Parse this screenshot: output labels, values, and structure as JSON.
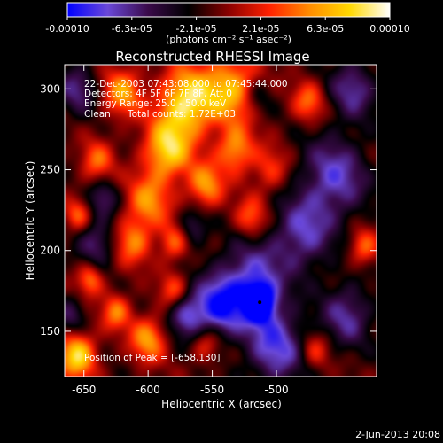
{
  "chart_data": {
    "type": "heatmap",
    "title": "Reconstructed RHESSI Image",
    "xlabel": "Heliocentric X (arcsec)",
    "ylabel": "Heliocentric Y (arcsec)",
    "xlim": [
      -665,
      -422
    ],
    "ylim": [
      122,
      315
    ],
    "x_ticks": [
      -650,
      -600,
      -550,
      -500
    ],
    "y_ticks": [
      150,
      200,
      250,
      300
    ],
    "colorbar": {
      "min": -0.0001,
      "max": 0.0001,
      "tick_labels": [
        "-0.00010",
        "-6.3e-05",
        "-2.1e-05",
        "2.1e-05",
        "6.3e-05",
        "0.00010"
      ],
      "unit_label": "(photons cm⁻² s⁻¹ asec⁻²)",
      "colormap": [
        "#0000ff",
        "#6a48d8",
        "#3a0a4a",
        "#000000",
        "#8a0000",
        "#ff2000",
        "#ff8c00",
        "#ffd800",
        "#ffffff"
      ]
    },
    "annotations": [
      "22-Dec-2003 07:43:08.000 to 07:45:44.000",
      "Detectors: 4F 5F 6F 7F 8F, Att 0",
      "Energy Range: 25.0 - 50.0 keV",
      "Clean",
      "Total counts: 1.72E+03"
    ],
    "peak_label": "Position of Peak = [-658,130]",
    "peak": [
      -658,
      130
    ],
    "marker": [
      -513,
      168
    ],
    "sources": [
      {
        "x": -570,
        "y": 292,
        "value": 9.5e-05,
        "sigma": 15
      },
      {
        "x": -585,
        "y": 262,
        "value": 8.5e-05,
        "sigma": 13
      },
      {
        "x": -535,
        "y": 300,
        "value": 7.5e-05,
        "sigma": 15
      },
      {
        "x": -555,
        "y": 240,
        "value": 6.5e-05,
        "sigma": 10
      },
      {
        "x": -532,
        "y": 262,
        "value": 6.5e-05,
        "sigma": 10
      },
      {
        "x": -620,
        "y": 298,
        "value": 6.5e-05,
        "sigma": 11
      },
      {
        "x": -600,
        "y": 230,
        "value": 6e-05,
        "sigma": 12
      },
      {
        "x": -612,
        "y": 205,
        "value": 5.5e-05,
        "sigma": 10
      },
      {
        "x": -640,
        "y": 255,
        "value": 5e-05,
        "sigma": 9
      },
      {
        "x": -580,
        "y": 205,
        "value": 5e-05,
        "sigma": 8
      },
      {
        "x": -520,
        "y": 220,
        "value": 5e-05,
        "sigma": 9
      },
      {
        "x": -505,
        "y": 250,
        "value": 4e-05,
        "sigma": 10
      },
      {
        "x": -655,
        "y": 135,
        "value": 9e-05,
        "sigma": 10
      },
      {
        "x": -600,
        "y": 145,
        "value": 6.5e-05,
        "sigma": 10
      },
      {
        "x": -625,
        "y": 162,
        "value": 5.5e-05,
        "sigma": 8
      },
      {
        "x": -580,
        "y": 175,
        "value": 4.5e-05,
        "sigma": 8
      },
      {
        "x": -555,
        "y": 142,
        "value": 4e-05,
        "sigma": 8
      },
      {
        "x": -645,
        "y": 182,
        "value": 5.5e-05,
        "sigma": 7
      },
      {
        "x": -655,
        "y": 222,
        "value": 4.5e-05,
        "sigma": 7
      },
      {
        "x": -475,
        "y": 292,
        "value": 5e-05,
        "sigma": 9
      },
      {
        "x": -432,
        "y": 202,
        "value": 5e-05,
        "sigma": 8
      },
      {
        "x": -470,
        "y": 138,
        "value": 4e-05,
        "sigma": 8
      },
      {
        "x": -455,
        "y": 245,
        "value": -6e-05,
        "sigma": 18
      },
      {
        "x": -480,
        "y": 210,
        "value": -5.5e-05,
        "sigma": 16
      },
      {
        "x": -520,
        "y": 180,
        "value": -6.5e-05,
        "sigma": 18
      },
      {
        "x": -545,
        "y": 165,
        "value": -7e-05,
        "sigma": 13
      },
      {
        "x": -513,
        "y": 168,
        "value": -9.5e-05,
        "sigma": 8
      },
      {
        "x": -570,
        "y": 160,
        "value": -6e-05,
        "sigma": 10
      },
      {
        "x": -500,
        "y": 140,
        "value": -6.5e-05,
        "sigma": 16
      },
      {
        "x": -445,
        "y": 160,
        "value": -5e-05,
        "sigma": 14
      },
      {
        "x": -440,
        "y": 300,
        "value": -5e-05,
        "sigma": 13
      },
      {
        "x": -655,
        "y": 300,
        "value": -4.5e-05,
        "sigma": 11
      },
      {
        "x": -640,
        "y": 205,
        "value": -4.5e-05,
        "sigma": 10
      },
      {
        "x": -635,
        "y": 232,
        "value": -4e-05,
        "sigma": 8
      },
      {
        "x": -565,
        "y": 215,
        "value": -4e-05,
        "sigma": 8
      },
      {
        "x": -660,
        "y": 160,
        "value": -3.5e-05,
        "sigma": 8
      },
      {
        "x": -515,
        "y": 295,
        "value": -3e-05,
        "sigma": 8
      }
    ]
  },
  "footer": {
    "date": "2-Jun-2013 20:08"
  }
}
